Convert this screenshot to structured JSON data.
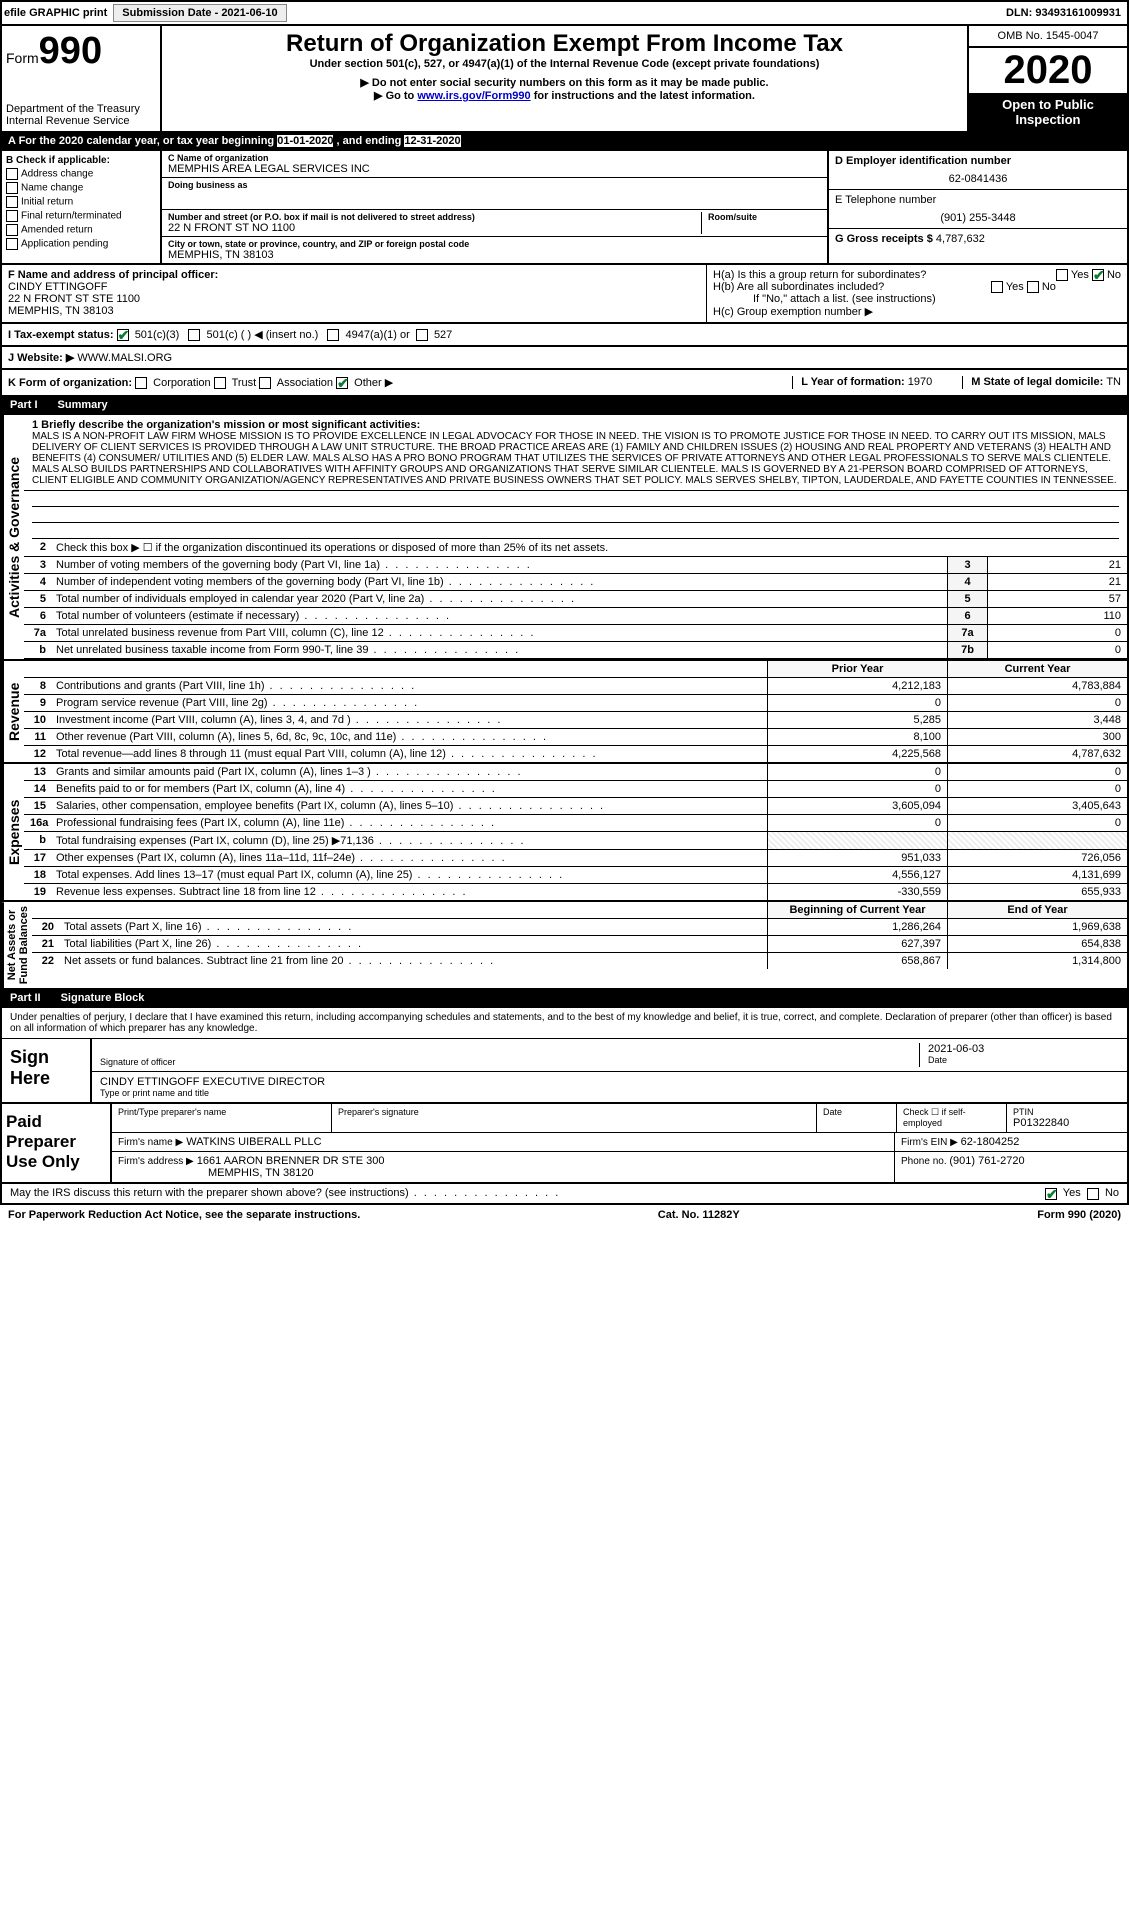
{
  "topbar": {
    "efile": "efile GRAPHIC print",
    "sub_label": "Submission Date - 2021-06-10",
    "dln": "DLN: 93493161009931"
  },
  "header": {
    "form_label": "Form",
    "form_no": "990",
    "dept": "Department of the Treasury\nInternal Revenue Service",
    "title": "Return of Organization Exempt From Income Tax",
    "sub1": "Under section 501(c), 527, or 4947(a)(1) of the Internal Revenue Code (except private foundations)",
    "sub2": "▶ Do not enter social security numbers on this form as it may be made public.",
    "sub3_pre": "▶ Go to ",
    "sub3_link": "www.irs.gov/Form990",
    "sub3_post": " for instructions and the latest information.",
    "omb": "OMB No. 1545-0047",
    "year": "2020",
    "open": "Open to Public Inspection"
  },
  "period": {
    "pre": "A For the 2020 calendar year, or tax year beginning ",
    "start": "01-01-2020",
    "mid": " , and ending ",
    "end": "12-31-2020"
  },
  "colB": {
    "title": "B Check if applicable:",
    "opts": [
      "Address change",
      "Name change",
      "Initial return",
      "Final return/terminated",
      "Amended return",
      "Application pending"
    ]
  },
  "colC": {
    "name_label": "C Name of organization",
    "name": "MEMPHIS AREA LEGAL SERVICES INC",
    "dba_label": "Doing business as",
    "dba": "",
    "street_label": "Number and street (or P.O. box if mail is not delivered to street address)",
    "street": "22 N FRONT ST NO 1100",
    "room_label": "Room/suite",
    "city_label": "City or town, state or province, country, and ZIP or foreign postal code",
    "city": "MEMPHIS, TN  38103"
  },
  "colD": {
    "ein_label": "D Employer identification number",
    "ein": "62-0841436",
    "phone_label": "E Telephone number",
    "phone": "(901) 255-3448",
    "gross_label": "G Gross receipts $ ",
    "gross": "4,787,632"
  },
  "rowF": {
    "label": "F  Name and address of principal officer:",
    "name": "CINDY ETTINGOFF",
    "addr1": "22 N FRONT ST STE 1100",
    "addr2": "MEMPHIS, TN  38103"
  },
  "rowH": {
    "a": "H(a)  Is this a group return for subordinates?",
    "b": "H(b)  Are all subordinates included?",
    "note": "If \"No,\" attach a list. (see instructions)",
    "c": "H(c)  Group exemption number ▶"
  },
  "rowI": {
    "label": "I  Tax-exempt status:",
    "o1": "501(c)(3)",
    "o2": "501(c) (  ) ◀ (insert no.)",
    "o3": "4947(a)(1) or",
    "o4": "527"
  },
  "rowJ": {
    "label": "J  Website: ▶",
    "val": " WWW.MALSI.ORG"
  },
  "rowK": {
    "label": "K Form of organization:",
    "opts": [
      "Corporation",
      "Trust",
      "Association",
      "Other ▶"
    ]
  },
  "rowL": {
    "label": "L Year of formation: ",
    "val": "1970"
  },
  "rowM": {
    "label": "M State of legal domicile: ",
    "val": "TN"
  },
  "part1": {
    "label": "Part I",
    "title": "Summary"
  },
  "mission_label": "1  Briefly describe the organization's mission or most significant activities:",
  "mission": "MALS IS A NON-PROFIT LAW FIRM WHOSE MISSION IS TO PROVIDE EXCELLENCE IN LEGAL ADVOCACY FOR THOSE IN NEED. THE VISION IS TO PROMOTE JUSTICE FOR THOSE IN NEED. TO CARRY OUT ITS MISSION, MALS DELIVERY OF CLIENT SERVICES IS PROVIDED THROUGH A LAW UNIT STRUCTURE. THE BROAD PRACTICE AREAS ARE (1) FAMILY AND CHILDREN ISSUES (2) HOUSING AND REAL PROPERTY AND VETERANS (3) HEALTH AND BENEFITS (4) CONSUMER/ UTILITIES AND (5) ELDER LAW. MALS ALSO HAS A PRO BONO PROGRAM THAT UTILIZES THE SERVICES OF PRIVATE ATTORNEYS AND OTHER LEGAL PROFESSIONALS TO SERVE MALS CLIENTELE. MALS ALSO BUILDS PARTNERSHIPS AND COLLABORATIVES WITH AFFINITY GROUPS AND ORGANIZATIONS THAT SERVE SIMILAR CLIENTELE. MALS IS GOVERNED BY A 21-PERSON BOARD COMPRISED OF ATTORNEYS, CLIENT ELIGIBLE AND COMMUNITY ORGANIZATION/AGENCY REPRESENTATIVES AND PRIVATE BUSINESS OWNERS THAT SET POLICY. MALS SERVES SHELBY, TIPTON, LAUDERDALE, AND FAYETTE COUNTIES IN TENNESSEE.",
  "act_rows": [
    {
      "n": "2",
      "t": "Check this box ▶ ☐ if the organization discontinued its operations or disposed of more than 25% of its net assets.",
      "bn": "",
      "v": ""
    },
    {
      "n": "3",
      "t": "Number of voting members of the governing body (Part VI, line 1a)",
      "bn": "3",
      "v": "21"
    },
    {
      "n": "4",
      "t": "Number of independent voting members of the governing body (Part VI, line 1b)",
      "bn": "4",
      "v": "21"
    },
    {
      "n": "5",
      "t": "Total number of individuals employed in calendar year 2020 (Part V, line 2a)",
      "bn": "5",
      "v": "57"
    },
    {
      "n": "6",
      "t": "Total number of volunteers (estimate if necessary)",
      "bn": "6",
      "v": "110"
    },
    {
      "n": "7a",
      "t": "Total unrelated business revenue from Part VIII, column (C), line 12",
      "bn": "7a",
      "v": "0"
    },
    {
      "n": "b",
      "t": "Net unrelated business taxable income from Form 990-T, line 39",
      "bn": "7b",
      "v": "0"
    }
  ],
  "vert": {
    "act": "Activities & Governance",
    "rev": "Revenue",
    "exp": "Expenses",
    "na": "Net Assets or\nFund Balances"
  },
  "pycy": {
    "py": "Prior Year",
    "cy": "Current Year",
    "boy": "Beginning of Current Year",
    "eoy": "End of Year"
  },
  "rev_rows": [
    {
      "n": "8",
      "t": "Contributions and grants (Part VIII, line 1h)",
      "py": "4,212,183",
      "cy": "4,783,884"
    },
    {
      "n": "9",
      "t": "Program service revenue (Part VIII, line 2g)",
      "py": "0",
      "cy": "0"
    },
    {
      "n": "10",
      "t": "Investment income (Part VIII, column (A), lines 3, 4, and 7d )",
      "py": "5,285",
      "cy": "3,448"
    },
    {
      "n": "11",
      "t": "Other revenue (Part VIII, column (A), lines 5, 6d, 8c, 9c, 10c, and 11e)",
      "py": "8,100",
      "cy": "300"
    },
    {
      "n": "12",
      "t": "Total revenue—add lines 8 through 11 (must equal Part VIII, column (A), line 12)",
      "py": "4,225,568",
      "cy": "4,787,632"
    }
  ],
  "exp_rows": [
    {
      "n": "13",
      "t": "Grants and similar amounts paid (Part IX, column (A), lines 1–3 )",
      "py": "0",
      "cy": "0"
    },
    {
      "n": "14",
      "t": "Benefits paid to or for members (Part IX, column (A), line 4)",
      "py": "0",
      "cy": "0"
    },
    {
      "n": "15",
      "t": "Salaries, other compensation, employee benefits (Part IX, column (A), lines 5–10)",
      "py": "3,605,094",
      "cy": "3,405,643"
    },
    {
      "n": "16a",
      "t": "Professional fundraising fees (Part IX, column (A), line 11e)",
      "py": "0",
      "cy": "0"
    },
    {
      "n": "b",
      "t": "Total fundraising expenses (Part IX, column (D), line 25) ▶71,136",
      "py": "HATCH",
      "cy": "HATCH"
    },
    {
      "n": "17",
      "t": "Other expenses (Part IX, column (A), lines 11a–11d, 11f–24e)",
      "py": "951,033",
      "cy": "726,056"
    },
    {
      "n": "18",
      "t": "Total expenses. Add lines 13–17 (must equal Part IX, column (A), line 25)",
      "py": "4,556,127",
      "cy": "4,131,699"
    },
    {
      "n": "19",
      "t": "Revenue less expenses. Subtract line 18 from line 12",
      "py": "-330,559",
      "cy": "655,933"
    }
  ],
  "na_rows": [
    {
      "n": "20",
      "t": "Total assets (Part X, line 16)",
      "py": "1,286,264",
      "cy": "1,969,638"
    },
    {
      "n": "21",
      "t": "Total liabilities (Part X, line 26)",
      "py": "627,397",
      "cy": "654,838"
    },
    {
      "n": "22",
      "t": "Net assets or fund balances. Subtract line 21 from line 20",
      "py": "658,867",
      "cy": "1,314,800"
    }
  ],
  "part2": {
    "label": "Part II",
    "title": "Signature Block"
  },
  "sig": {
    "intro": "Under penalties of perjury, I declare that I have examined this return, including accompanying schedules and statements, and to the best of my knowledge and belief, it is true, correct, and complete. Declaration of preparer (other than officer) is based on all information of which preparer has any knowledge.",
    "sign_here": "Sign Here",
    "sig_officer": "Signature of officer",
    "date": "2021-06-03",
    "date_label": "Date",
    "name": "CINDY ETTINGOFF  EXECUTIVE DIRECTOR",
    "name_label": "Type or print name and title"
  },
  "paid": {
    "label": "Paid Preparer Use Only",
    "h1": "Print/Type preparer's name",
    "h2": "Preparer's signature",
    "h3": "Date",
    "h4a": "Check ☐ if self-employed",
    "h4b": "PTIN",
    "ptin": "P01322840",
    "firm_label": "Firm's name    ▶",
    "firm": "WATKINS UIBERALL PLLC",
    "ein_label": "Firm's EIN ▶ ",
    "ein": "62-1804252",
    "addr_label": "Firm's address ▶",
    "addr1": "1661 AARON BRENNER DR STE 300",
    "addr2": "MEMPHIS, TN  38120",
    "phone_label": "Phone no. ",
    "phone": "(901) 761-2720"
  },
  "footer": {
    "discuss": "May the IRS discuss this return with the preparer shown above? (see instructions)",
    "yes": "Yes",
    "no": "No",
    "pra": "For Paperwork Reduction Act Notice, see the separate instructions.",
    "cat": "Cat. No. 11282Y",
    "form": "Form 990 (2020)"
  }
}
